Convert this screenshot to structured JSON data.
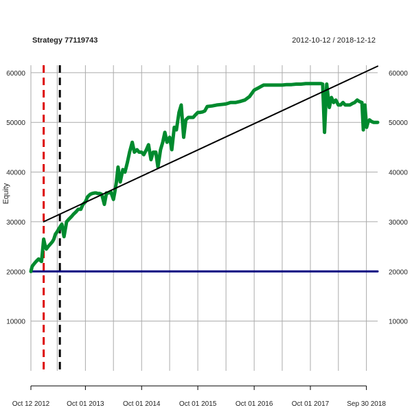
{
  "chart_data": {
    "type": "line",
    "title": "Strategy 77119743",
    "date_range": "2012-10-12 / 2018-12-12",
    "ylabel": "Equity",
    "xlabel": "",
    "xlim": [
      "2012-10-12",
      "2018-12-12"
    ],
    "ylim": [
      0,
      61500
    ],
    "y_ticks": [
      10000,
      20000,
      30000,
      40000,
      50000,
      60000
    ],
    "y_tick_labels": [
      "10000",
      "20000",
      "30000",
      "40000",
      "50000",
      "60000"
    ],
    "x_ticks": [
      "2012-10-12",
      "2013-10-01",
      "2014-10-01",
      "2015-10-01",
      "2016-10-01",
      "2017-10-01",
      "2018-09-30"
    ],
    "x_tick_labels": [
      "Oct 12 2012",
      "Oct 01 2013",
      "Oct 01 2014",
      "Oct 01 2015",
      "Oct 01 2016",
      "Oct 01 2017",
      "Sep 30 2018"
    ],
    "extra_x_gridlines": [
      "2013-04-01",
      "2014-04-01",
      "2015-04-01",
      "2016-04-01",
      "2017-04-01",
      "2018-04-01"
    ],
    "grid": true,
    "right_axis": true,
    "colors": {
      "equity": "#008a2e",
      "trend": "#000000",
      "baseline": "#000080",
      "red_marker": "#dd0000",
      "black_marker": "#000000",
      "grid": "#aaaaaa"
    },
    "series": [
      {
        "role": "equity",
        "x": [
          "2012-10-12",
          "2012-10-20",
          "2012-11-01",
          "2012-11-15",
          "2012-12-01",
          "2012-12-20",
          "2013-01-03",
          "2013-01-10",
          "2013-01-20",
          "2013-02-01",
          "2013-02-15",
          "2013-03-01",
          "2013-03-10",
          "2013-03-20",
          "2013-04-01",
          "2013-04-10",
          "2013-04-20",
          "2013-05-01",
          "2013-05-15",
          "2013-06-01",
          "2013-06-15",
          "2013-07-01",
          "2013-07-15",
          "2013-08-01",
          "2013-08-15",
          "2013-09-01",
          "2013-09-15",
          "2013-10-01",
          "2013-10-15",
          "2013-11-01",
          "2013-11-15",
          "2013-12-01",
          "2013-12-10",
          "2013-12-20",
          "2014-01-01",
          "2014-01-15",
          "2014-02-01",
          "2014-02-15",
          "2014-03-01",
          "2014-03-15",
          "2014-04-01",
          "2014-04-10",
          "2014-04-20",
          "2014-05-01",
          "2014-05-15",
          "2014-06-01",
          "2014-06-15",
          "2014-07-01",
          "2014-07-15",
          "2014-08-01",
          "2014-08-15",
          "2014-09-01",
          "2014-09-15",
          "2014-10-01",
          "2014-10-15",
          "2014-11-01",
          "2014-11-15",
          "2014-12-01",
          "2014-12-15",
          "2015-01-01",
          "2015-01-15",
          "2015-02-01",
          "2015-02-15",
          "2015-03-01",
          "2015-03-15",
          "2015-04-01",
          "2015-04-15",
          "2015-05-01",
          "2015-05-15",
          "2015-06-01",
          "2015-06-15",
          "2015-07-01",
          "2015-07-15",
          "2015-08-01",
          "2015-08-15",
          "2015-09-01",
          "2015-09-15",
          "2015-10-01",
          "2015-10-15",
          "2015-11-01",
          "2015-11-15",
          "2015-12-01",
          "2016-01-01",
          "2016-02-01",
          "2016-03-01",
          "2016-04-01",
          "2016-05-01",
          "2016-06-01",
          "2016-07-01",
          "2016-08-01",
          "2016-09-01",
          "2016-10-01",
          "2016-11-01",
          "2016-12-01",
          "2017-01-01",
          "2017-02-01",
          "2017-03-01",
          "2017-04-01",
          "2017-05-01",
          "2017-06-01",
          "2017-07-01",
          "2017-08-01",
          "2017-09-01",
          "2017-10-01",
          "2017-11-01",
          "2017-12-01",
          "2017-12-10",
          "2017-12-20",
          "2018-01-01",
          "2018-01-15",
          "2018-02-01",
          "2018-02-15",
          "2018-03-01",
          "2018-03-15",
          "2018-04-01",
          "2018-04-15",
          "2018-05-01",
          "2018-05-15",
          "2018-06-01",
          "2018-06-15",
          "2018-07-01",
          "2018-07-15",
          "2018-08-01",
          "2018-08-15",
          "2018-09-01",
          "2018-09-10",
          "2018-09-20",
          "2018-10-01",
          "2018-10-10",
          "2018-10-20",
          "2018-11-01",
          "2018-11-15",
          "2018-12-01",
          "2018-12-12"
        ],
        "values": [
          20000,
          21000,
          21500,
          22000,
          22500,
          22000,
          26500,
          25500,
          24500,
          25000,
          25500,
          26000,
          26500,
          27500,
          28000,
          28500,
          29000,
          29500,
          27000,
          30000,
          30500,
          31000,
          31500,
          32000,
          32500,
          32500,
          33500,
          34000,
          35000,
          35500,
          35700,
          35800,
          35800,
          35700,
          35700,
          35500,
          33500,
          35800,
          35800,
          36000,
          34500,
          36000,
          38000,
          41000,
          38000,
          40500,
          40000,
          42000,
          44000,
          46000,
          44000,
          44500,
          44000,
          44000,
          43500,
          44500,
          45500,
          42500,
          44000,
          44000,
          41000,
          44500,
          46000,
          48000,
          46000,
          47000,
          44500,
          49000,
          48500,
          52000,
          53500,
          47000,
          50500,
          51000,
          51000,
          51000,
          51500,
          52000,
          52000,
          52100,
          52300,
          53200,
          53300,
          53500,
          53600,
          53700,
          54000,
          54000,
          54200,
          54500,
          55200,
          56500,
          57000,
          57500,
          57500,
          57500,
          57500,
          57500,
          57600,
          57600,
          57700,
          57700,
          57800,
          57800,
          57800,
          57800,
          57800,
          57700,
          48000,
          57700,
          53000,
          55000,
          54000,
          54500,
          53500,
          53500,
          54000,
          53500,
          53500,
          53500,
          53800,
          54000,
          54500,
          54200,
          54000,
          48500,
          53500,
          49000,
          50000,
          50500,
          50200,
          50000,
          50000,
          50000
        ]
      },
      {
        "role": "trend",
        "x": [
          "2013-01-03",
          "2018-12-12"
        ],
        "values": [
          30000,
          61300
        ]
      },
      {
        "role": "baseline",
        "x": [
          "2012-10-12",
          "2018-12-12"
        ],
        "values": [
          20000,
          20000
        ]
      }
    ],
    "vlines": [
      {
        "role": "red_marker",
        "x": "2013-01-03"
      },
      {
        "role": "black_marker",
        "x": "2013-04-18"
      }
    ]
  }
}
